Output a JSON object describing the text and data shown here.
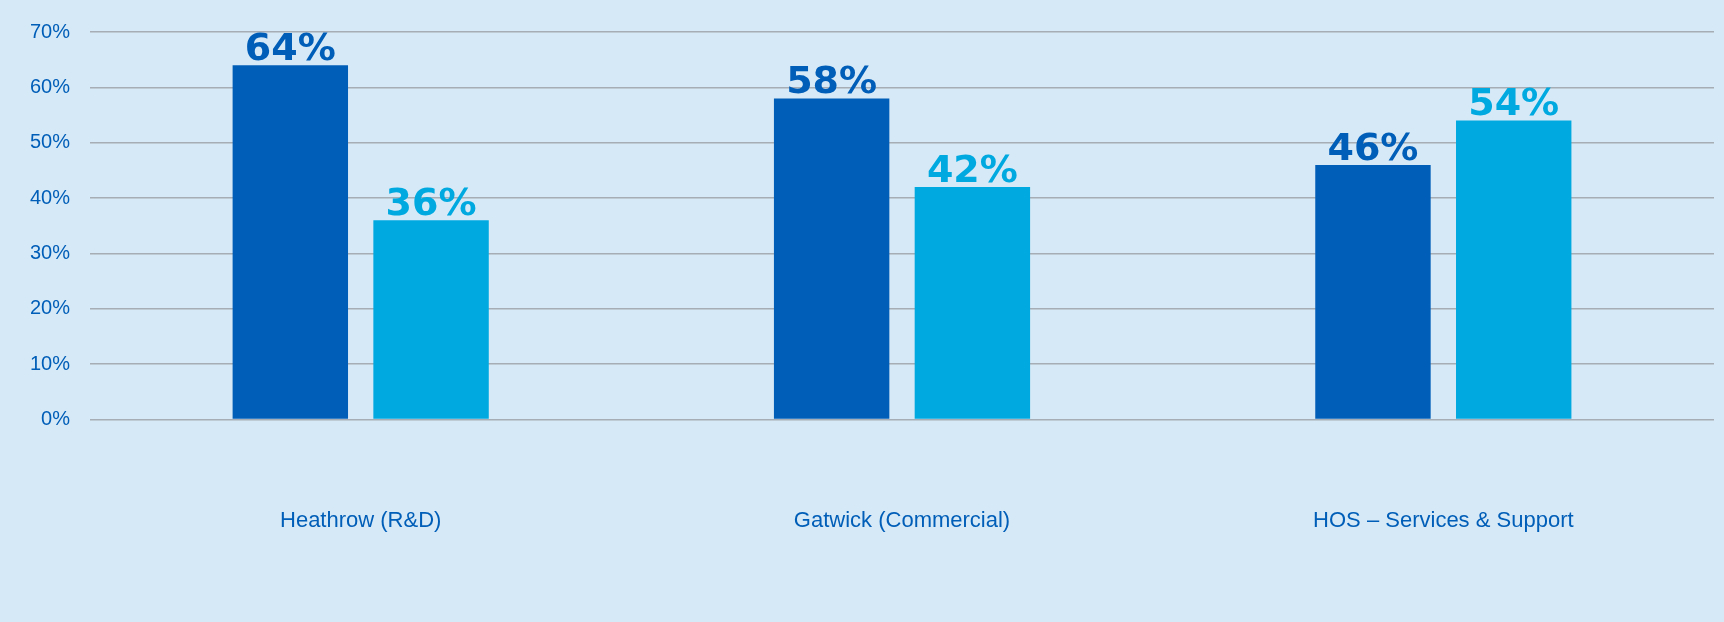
{
  "chart_data": {
    "type": "bar",
    "categories": [
      "Heathrow (R&D)",
      "Gatwick (Commercial)",
      "HOS – Services & Support"
    ],
    "series": [
      {
        "color": "#005eb8",
        "values": [
          64,
          58,
          46
        ],
        "value_labels": [
          "64%",
          "58%",
          "46%"
        ]
      },
      {
        "color": "#00a9e0",
        "values": [
          36,
          42,
          54
        ],
        "value_labels": [
          "36%",
          "42%",
          "54%"
        ]
      }
    ],
    "ylim": [
      0,
      70
    ],
    "yticks": [
      {
        "value": 0,
        "label": "0%"
      },
      {
        "value": 10,
        "label": "10%"
      },
      {
        "value": 20,
        "label": "20%"
      },
      {
        "value": 30,
        "label": "30%"
      },
      {
        "value": 40,
        "label": "40%"
      },
      {
        "value": 50,
        "label": "50%"
      },
      {
        "value": 60,
        "label": "60%"
      },
      {
        "value": 70,
        "label": "70%"
      }
    ],
    "grid": "y",
    "legend": false
  }
}
